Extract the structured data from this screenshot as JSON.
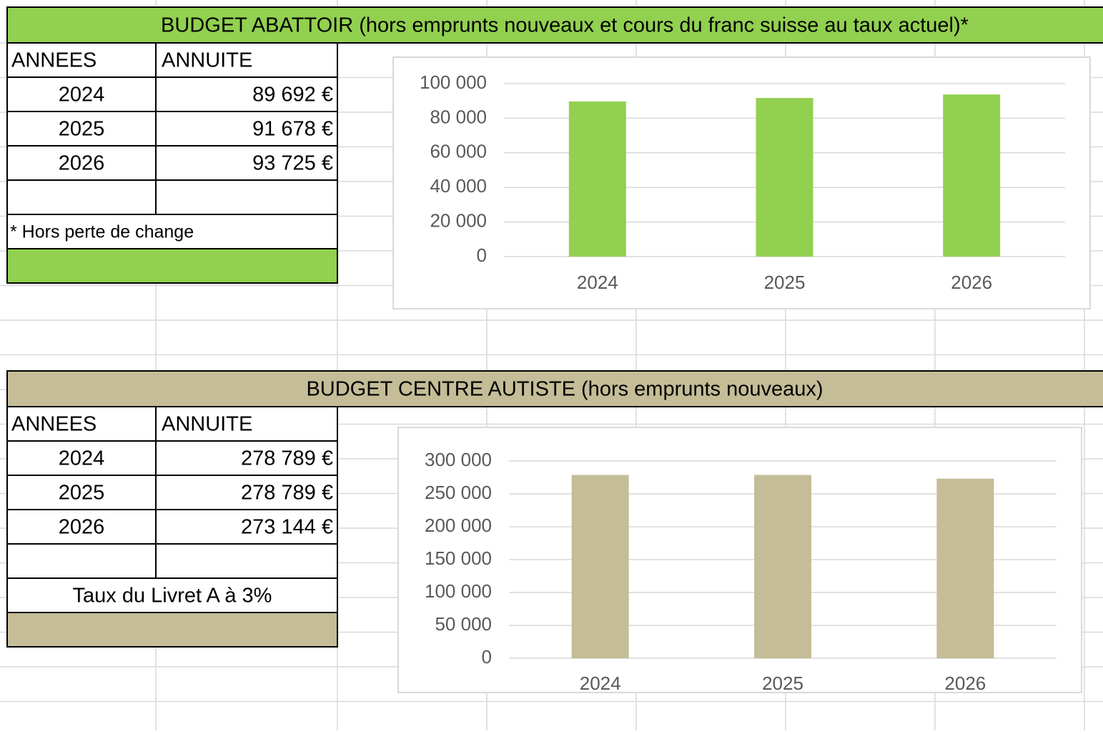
{
  "sections": [
    {
      "title": "BUDGET ABATTOIR (hors emprunts nouveaux et cours du franc suisse au taux actuel)*",
      "table": {
        "header": [
          "ANNEES",
          "ANNUITE"
        ],
        "rows": [
          [
            "2024",
            "89 692 €"
          ],
          [
            "2025",
            "91 678 €"
          ],
          [
            "2026",
            "93 725 €"
          ]
        ]
      },
      "note": "* Hors perte de change"
    },
    {
      "title": "BUDGET CENTRE AUTISTE (hors emprunts nouveaux)",
      "table": {
        "header": [
          "ANNEES",
          "ANNUITE"
        ],
        "rows": [
          [
            "2024",
            "278 789 €"
          ],
          [
            "2025",
            "278 789 €"
          ],
          [
            "2026",
            "273 144 €"
          ]
        ]
      },
      "note": "Taux du Livret A à 3%"
    }
  ],
  "chart_data": [
    {
      "type": "bar",
      "categories": [
        "2024",
        "2025",
        "2026"
      ],
      "values": [
        89692,
        91678,
        93725
      ],
      "color": "#92d050",
      "ylim": [
        0,
        100000
      ],
      "yticks": [
        0,
        {
          "value": 20000,
          "label": "20 000"
        },
        {
          "value": 40000,
          "label": "40 000"
        },
        {
          "value": 60000,
          "label": "60 000"
        },
        {
          "value": 80000,
          "label": "80 000"
        },
        {
          "value": 100000,
          "label": "100 000"
        }
      ],
      "grid": true
    },
    {
      "type": "bar",
      "categories": [
        "2024",
        "2025",
        "2026"
      ],
      "values": [
        278789,
        278789,
        273144
      ],
      "color": "#c4bd97",
      "ylim": [
        0,
        300000
      ],
      "yticks": [
        0,
        {
          "value": 50000,
          "label": "50 000"
        },
        {
          "value": 100000,
          "label": "100 000"
        },
        {
          "value": 150000,
          "label": "150 000"
        },
        {
          "value": 200000,
          "label": "200 000"
        },
        {
          "value": 250000,
          "label": "250 000"
        },
        {
          "value": 300000,
          "label": "300 000"
        }
      ],
      "grid": true
    }
  ]
}
